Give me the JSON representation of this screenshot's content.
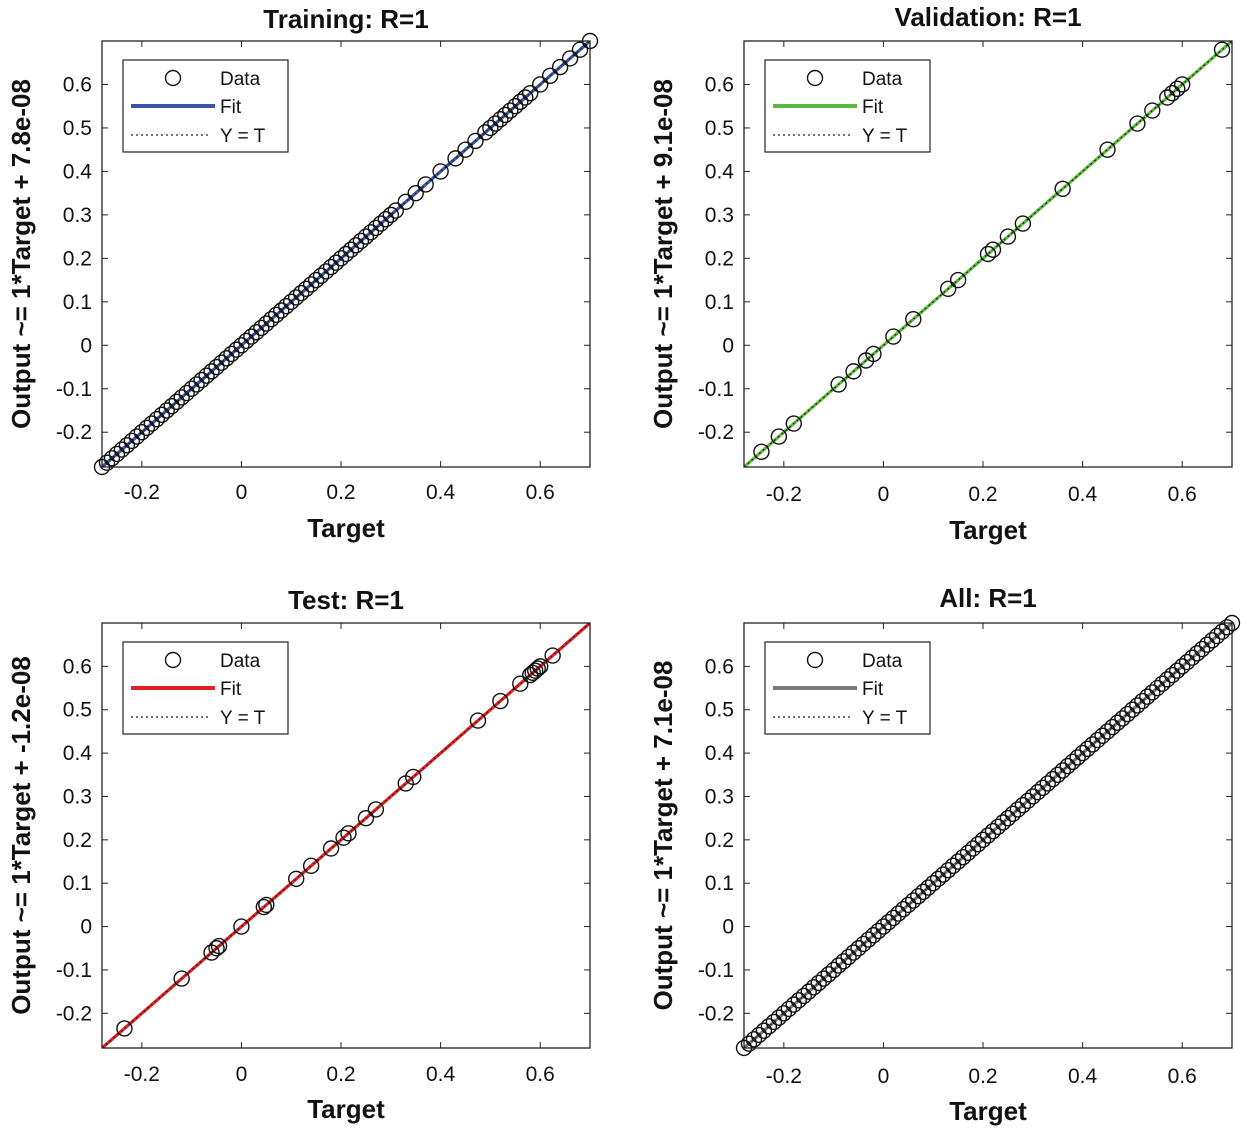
{
  "chart_data": [
    {
      "type": "scatter",
      "title": "Training: R=1",
      "xlabel": "Target",
      "ylabel": "Output ~= 1*Target + 7.8e-08",
      "xlim": [
        -0.28,
        0.7
      ],
      "ylim": [
        -0.28,
        0.7
      ],
      "xticks": [
        "-0.2",
        "0",
        "0.2",
        "0.4",
        "0.6"
      ],
      "yticks": [
        "-0.2",
        "-0.1",
        "0",
        "0.1",
        "0.2",
        "0.3",
        "0.4",
        "0.5",
        "0.6"
      ],
      "legend": {
        "position": "top-left",
        "entries": [
          "Data",
          "Fit",
          "Y = T"
        ]
      },
      "fit_color": "#3a55a4",
      "series": [
        {
          "role": "data",
          "marker": "open-circle",
          "x": [
            -0.28,
            -0.27,
            -0.26,
            -0.25,
            -0.24,
            -0.23,
            -0.22,
            -0.21,
            -0.2,
            -0.19,
            -0.18,
            -0.17,
            -0.16,
            -0.15,
            -0.14,
            -0.13,
            -0.12,
            -0.11,
            -0.1,
            -0.09,
            -0.08,
            -0.07,
            -0.06,
            -0.05,
            -0.04,
            -0.03,
            -0.02,
            -0.01,
            0.0,
            0.01,
            0.02,
            0.03,
            0.04,
            0.05,
            0.06,
            0.07,
            0.08,
            0.09,
            0.1,
            0.11,
            0.12,
            0.13,
            0.14,
            0.15,
            0.16,
            0.17,
            0.18,
            0.19,
            0.2,
            0.21,
            0.22,
            0.23,
            0.24,
            0.25,
            0.26,
            0.27,
            0.28,
            0.29,
            0.3,
            0.31,
            0.33,
            0.35,
            0.37,
            0.4,
            0.43,
            0.45,
            0.47,
            0.49,
            0.5,
            0.51,
            0.52,
            0.53,
            0.54,
            0.55,
            0.56,
            0.57,
            0.58,
            0.6,
            0.62,
            0.64,
            0.66,
            0.68,
            0.7
          ],
          "y": [
            -0.28,
            -0.27,
            -0.26,
            -0.25,
            -0.24,
            -0.23,
            -0.22,
            -0.21,
            -0.2,
            -0.19,
            -0.18,
            -0.17,
            -0.16,
            -0.15,
            -0.14,
            -0.13,
            -0.12,
            -0.11,
            -0.1,
            -0.09,
            -0.08,
            -0.07,
            -0.06,
            -0.05,
            -0.04,
            -0.03,
            -0.02,
            -0.01,
            0.0,
            0.01,
            0.02,
            0.03,
            0.04,
            0.05,
            0.06,
            0.07,
            0.08,
            0.09,
            0.1,
            0.11,
            0.12,
            0.13,
            0.14,
            0.15,
            0.16,
            0.17,
            0.18,
            0.19,
            0.2,
            0.21,
            0.22,
            0.23,
            0.24,
            0.25,
            0.26,
            0.27,
            0.28,
            0.29,
            0.3,
            0.31,
            0.33,
            0.35,
            0.37,
            0.4,
            0.43,
            0.45,
            0.47,
            0.49,
            0.5,
            0.51,
            0.52,
            0.53,
            0.54,
            0.55,
            0.56,
            0.57,
            0.58,
            0.6,
            0.62,
            0.64,
            0.66,
            0.68,
            0.7
          ]
        },
        {
          "role": "fit",
          "slope": 1,
          "intercept": 7.8e-08
        },
        {
          "role": "identity",
          "slope": 1,
          "intercept": 0
        }
      ]
    },
    {
      "type": "scatter",
      "title": "Validation: R=1",
      "xlabel": "Target",
      "ylabel": "Output ~= 1*Target + 9.1e-08",
      "xlim": [
        -0.28,
        0.7
      ],
      "ylim": [
        -0.28,
        0.7
      ],
      "xticks": [
        "-0.2",
        "0",
        "0.2",
        "0.4",
        "0.6"
      ],
      "yticks": [
        "-0.2",
        "-0.1",
        "0",
        "0.1",
        "0.2",
        "0.3",
        "0.4",
        "0.5",
        "0.6"
      ],
      "legend": {
        "position": "top-left",
        "entries": [
          "Data",
          "Fit",
          "Y = T"
        ]
      },
      "fit_color": "#5cb83c",
      "series": [
        {
          "role": "data",
          "marker": "open-circle",
          "x": [
            -0.245,
            -0.21,
            -0.18,
            -0.09,
            -0.06,
            -0.035,
            -0.02,
            0.02,
            0.06,
            0.13,
            0.15,
            0.21,
            0.22,
            0.25,
            0.28,
            0.36,
            0.45,
            0.51,
            0.54,
            0.57,
            0.58,
            0.59,
            0.6,
            0.68
          ],
          "y": [
            -0.245,
            -0.21,
            -0.18,
            -0.09,
            -0.06,
            -0.035,
            -0.02,
            0.02,
            0.06,
            0.13,
            0.15,
            0.21,
            0.22,
            0.25,
            0.28,
            0.36,
            0.45,
            0.51,
            0.54,
            0.57,
            0.58,
            0.59,
            0.6,
            0.68
          ]
        },
        {
          "role": "fit",
          "slope": 1,
          "intercept": 9.1e-08
        },
        {
          "role": "identity",
          "slope": 1,
          "intercept": 0
        }
      ]
    },
    {
      "type": "scatter",
      "title": "Test: R=1",
      "xlabel": "Target",
      "ylabel": "Output ~= 1*Target + -1.2e-08",
      "xlim": [
        -0.28,
        0.7
      ],
      "ylim": [
        -0.28,
        0.7
      ],
      "xticks": [
        "-0.2",
        "0",
        "0.2",
        "0.4",
        "0.6"
      ],
      "yticks": [
        "-0.2",
        "-0.1",
        "0",
        "0.1",
        "0.2",
        "0.3",
        "0.4",
        "0.5",
        "0.6"
      ],
      "legend": {
        "position": "top-left",
        "entries": [
          "Data",
          "Fit",
          "Y = T"
        ]
      },
      "fit_color": "#e02020",
      "series": [
        {
          "role": "data",
          "marker": "open-circle",
          "x": [
            -0.235,
            -0.12,
            -0.06,
            -0.05,
            -0.045,
            0.0,
            0.045,
            0.05,
            0.11,
            0.14,
            0.18,
            0.205,
            0.215,
            0.25,
            0.27,
            0.33,
            0.345,
            0.475,
            0.52,
            0.56,
            0.58,
            0.585,
            0.59,
            0.595,
            0.6,
            0.625
          ],
          "y": [
            -0.235,
            -0.12,
            -0.06,
            -0.05,
            -0.045,
            0.0,
            0.045,
            0.05,
            0.11,
            0.14,
            0.18,
            0.205,
            0.215,
            0.25,
            0.27,
            0.33,
            0.345,
            0.475,
            0.52,
            0.56,
            0.58,
            0.585,
            0.59,
            0.595,
            0.6,
            0.625
          ]
        },
        {
          "role": "fit",
          "slope": 1,
          "intercept": -1.2e-08
        },
        {
          "role": "identity",
          "slope": 1,
          "intercept": 0
        }
      ]
    },
    {
      "type": "scatter",
      "title": "All: R=1",
      "xlabel": "Target",
      "ylabel": "Output ~= 1*Target + 7.1e-08",
      "xlim": [
        -0.28,
        0.7
      ],
      "ylim": [
        -0.28,
        0.7
      ],
      "xticks": [
        "-0.2",
        "0",
        "0.2",
        "0.4",
        "0.6"
      ],
      "yticks": [
        "-0.2",
        "-0.1",
        "0",
        "0.1",
        "0.2",
        "0.3",
        "0.4",
        "0.5",
        "0.6"
      ],
      "legend": {
        "position": "top-left",
        "entries": [
          "Data",
          "Fit",
          "Y = T"
        ]
      },
      "fit_color": "#7a7a7a",
      "series": [
        {
          "role": "data",
          "marker": "open-circle",
          "x": [
            -0.28,
            -0.27,
            -0.26,
            -0.25,
            -0.24,
            -0.23,
            -0.22,
            -0.21,
            -0.2,
            -0.19,
            -0.18,
            -0.17,
            -0.16,
            -0.15,
            -0.14,
            -0.13,
            -0.12,
            -0.11,
            -0.1,
            -0.09,
            -0.08,
            -0.07,
            -0.06,
            -0.05,
            -0.04,
            -0.03,
            -0.02,
            -0.01,
            0.0,
            0.01,
            0.02,
            0.03,
            0.04,
            0.05,
            0.06,
            0.07,
            0.08,
            0.09,
            0.1,
            0.11,
            0.12,
            0.13,
            0.14,
            0.15,
            0.16,
            0.17,
            0.18,
            0.19,
            0.2,
            0.21,
            0.22,
            0.23,
            0.24,
            0.25,
            0.26,
            0.27,
            0.28,
            0.29,
            0.3,
            0.31,
            0.32,
            0.33,
            0.34,
            0.35,
            0.36,
            0.37,
            0.38,
            0.39,
            0.4,
            0.41,
            0.42,
            0.43,
            0.44,
            0.45,
            0.46,
            0.47,
            0.48,
            0.49,
            0.5,
            0.51,
            0.52,
            0.53,
            0.54,
            0.55,
            0.56,
            0.57,
            0.58,
            0.59,
            0.6,
            0.61,
            0.62,
            0.63,
            0.64,
            0.65,
            0.66,
            0.67,
            0.68,
            0.69,
            0.7
          ],
          "y": [
            -0.28,
            -0.27,
            -0.26,
            -0.25,
            -0.24,
            -0.23,
            -0.22,
            -0.21,
            -0.2,
            -0.19,
            -0.18,
            -0.17,
            -0.16,
            -0.15,
            -0.14,
            -0.13,
            -0.12,
            -0.11,
            -0.1,
            -0.09,
            -0.08,
            -0.07,
            -0.06,
            -0.05,
            -0.04,
            -0.03,
            -0.02,
            -0.01,
            0.0,
            0.01,
            0.02,
            0.03,
            0.04,
            0.05,
            0.06,
            0.07,
            0.08,
            0.09,
            0.1,
            0.11,
            0.12,
            0.13,
            0.14,
            0.15,
            0.16,
            0.17,
            0.18,
            0.19,
            0.2,
            0.21,
            0.22,
            0.23,
            0.24,
            0.25,
            0.26,
            0.27,
            0.28,
            0.29,
            0.3,
            0.31,
            0.32,
            0.33,
            0.34,
            0.35,
            0.36,
            0.37,
            0.38,
            0.39,
            0.4,
            0.41,
            0.42,
            0.43,
            0.44,
            0.45,
            0.46,
            0.47,
            0.48,
            0.49,
            0.5,
            0.51,
            0.52,
            0.53,
            0.54,
            0.55,
            0.56,
            0.57,
            0.58,
            0.59,
            0.6,
            0.61,
            0.62,
            0.63,
            0.64,
            0.65,
            0.66,
            0.67,
            0.68,
            0.69,
            0.7
          ]
        },
        {
          "role": "fit",
          "slope": 1,
          "intercept": 7.1e-08
        },
        {
          "role": "identity",
          "slope": 1,
          "intercept": 0
        }
      ]
    }
  ]
}
